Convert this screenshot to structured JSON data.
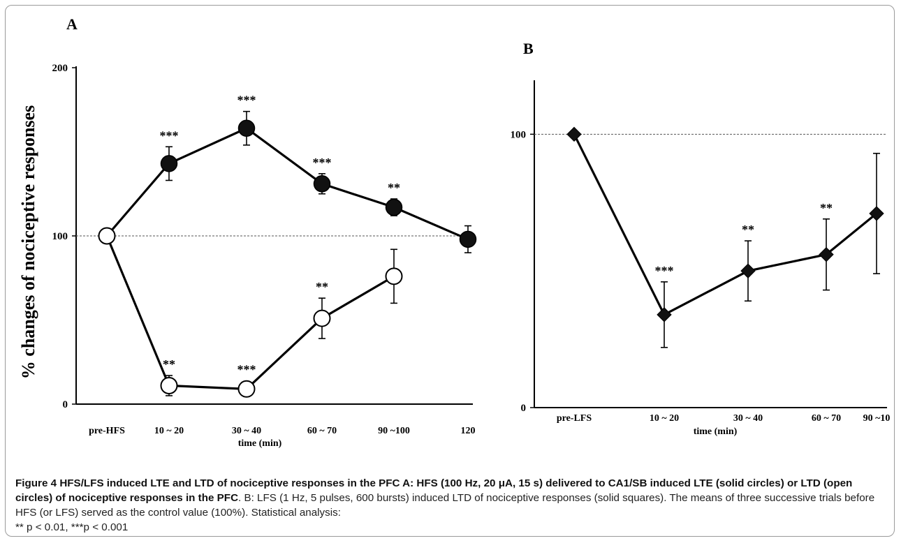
{
  "caption": {
    "figure_label": "Figure 4",
    "bold_text": "HFS/LFS induced LTE and LTD of nociceptive responses in the PFC A: HFS (100 Hz, 20 μA, 15 s) delivered to CA1/SB induced LTE (solid circles) or LTD (open circles) of nociceptive responses in the PFC",
    "rest_text": ". B: LFS (1 Hz, 5 pulses, 600 bursts) induced LTD of nociceptive responses (solid squares). The means of three successive trials before HFS (or LFS) served as the control value (100%). Statistical analysis:",
    "stats_text": "** p < 0.01, ***p < 0.001"
  },
  "chart_data": [
    {
      "panel": "A",
      "type": "line",
      "ylabel": "% changes of nociceptive responses",
      "xlabel": "time (min)",
      "categories": [
        "pre-HFS",
        "10 ~ 20",
        "30 ~ 40",
        "60 ~ 70",
        "90 ~100",
        "120"
      ],
      "yticks": [
        "0",
        "100",
        "200"
      ],
      "ylim": [
        0,
        200
      ],
      "reference_line": 100,
      "series": [
        {
          "marker": "filled-circle",
          "values": [
            100,
            143,
            164,
            131,
            117,
            98
          ],
          "errors": [
            0,
            10,
            10,
            6,
            5,
            8
          ],
          "significance": [
            "",
            "***",
            "***",
            "***",
            "**",
            ""
          ]
        },
        {
          "marker": "open-circle",
          "values": [
            100,
            11,
            9,
            51,
            76,
            null
          ],
          "errors": [
            0,
            6,
            0,
            12,
            16,
            null
          ],
          "significance": [
            "",
            "**",
            "***",
            "**",
            "",
            ""
          ]
        }
      ]
    },
    {
      "panel": "B",
      "type": "line",
      "xlabel": "time (min)",
      "categories": [
        "pre-LFS",
        "10 ~ 20",
        "30 ~ 40",
        "60 ~ 70",
        "90 ~10"
      ],
      "yticks": [
        "0",
        "100"
      ],
      "ylim": [
        0,
        120
      ],
      "reference_line": 100,
      "series": [
        {
          "marker": "filled-diamond",
          "values": [
            100,
            34,
            50,
            56,
            71
          ],
          "errors": [
            0,
            12,
            11,
            13,
            22
          ],
          "significance": [
            "",
            "***",
            "**",
            "**",
            ""
          ]
        }
      ]
    }
  ]
}
